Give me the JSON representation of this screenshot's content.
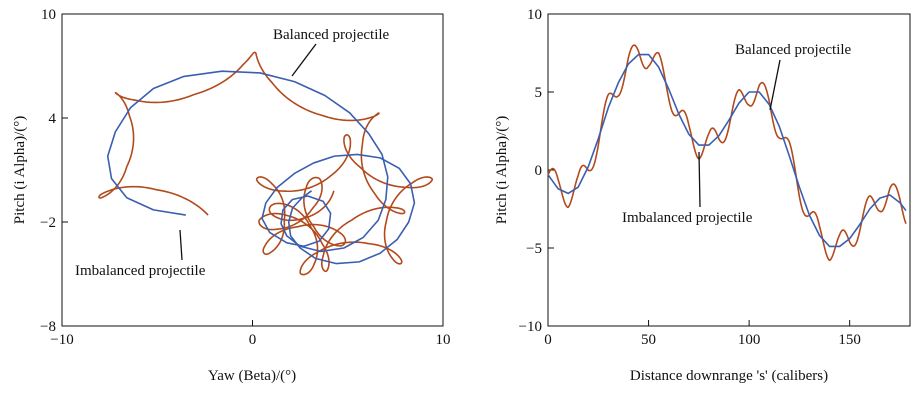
{
  "chart_data": [
    {
      "type": "line",
      "title": "",
      "xlabel": "Yaw (Beta)/(°)",
      "ylabel": "Pitch (i Alpha)/(°)",
      "xlim": [
        -10,
        10
      ],
      "ylim": [
        -8,
        10
      ],
      "xticks": [
        -10,
        0,
        10
      ],
      "yticks": [
        10,
        4,
        -2,
        -8
      ],
      "xtick_labels": [
        "−10",
        "0",
        "10"
      ],
      "ytick_labels": [
        "10",
        "4",
        "−2",
        "−8"
      ],
      "grid": false,
      "annotations": [
        {
          "text": "Balanced projectile",
          "target": "Balanced projectile"
        },
        {
          "text": "Imbalanced projectile",
          "target": "Imbalanced projectile"
        }
      ],
      "series": [
        {
          "name": "Balanced projectile",
          "color": "#3a5fb0",
          "x": [
            -3.5,
            -5.2,
            -6.6,
            -7.4,
            -7.6,
            -7.2,
            -6.4,
            -5.2,
            -3.6,
            -1.6,
            0.4,
            2.2,
            3.8,
            5.1,
            6.1,
            6.8,
            7.1,
            7.0,
            6.6,
            5.8,
            4.8,
            3.6,
            2.5,
            1.8,
            1.5,
            1.6,
            2.1,
            2.9,
            3.7,
            4.1,
            4.0,
            3.5,
            2.7,
            1.8,
            0.9,
            0.5,
            0.7,
            1.3,
            2.2,
            3.2,
            4.3,
            5.5,
            6.7,
            7.7,
            8.3,
            8.5,
            8.2,
            7.6,
            6.7,
            5.6,
            4.4,
            3.3,
            2.5,
            2.0,
            1.9,
            2.1,
            2.6,
            3.1
          ],
          "y": [
            -1.6,
            -1.3,
            -0.6,
            0.5,
            1.8,
            3.2,
            4.6,
            5.7,
            6.4,
            6.7,
            6.6,
            6.1,
            5.3,
            4.3,
            3.1,
            1.9,
            0.6,
            -0.7,
            -1.9,
            -2.9,
            -3.5,
            -3.7,
            -3.4,
            -2.8,
            -2.1,
            -1.3,
            -0.7,
            -0.5,
            -0.8,
            -1.5,
            -2.4,
            -3.1,
            -3.4,
            -3.2,
            -2.6,
            -1.8,
            -0.9,
            0.0,
            0.8,
            1.4,
            1.8,
            1.9,
            1.7,
            1.1,
            0.2,
            -0.9,
            -2.0,
            -3.0,
            -3.8,
            -4.3,
            -4.4,
            -4.1,
            -3.5,
            -2.8,
            -2.0,
            -1.2,
            -0.6,
            -0.2
          ]
        },
        {
          "name": "Imbalanced projectile",
          "color": "#b24a1d",
          "base_x": [
            -3.5,
            -5.2,
            -6.6,
            -7.4,
            -7.6,
            -7.2,
            -6.4,
            -5.2,
            -3.6,
            -1.6,
            0.4,
            2.2,
            3.8,
            5.1,
            6.1,
            6.8,
            7.1,
            7.0,
            6.6,
            5.8,
            4.8,
            3.6,
            2.5,
            1.8,
            1.5,
            1.6,
            2.1,
            2.9,
            3.7,
            4.1,
            4.0,
            3.5,
            2.7,
            1.8,
            0.9,
            0.5,
            0.7,
            1.3,
            2.2,
            3.2,
            4.3,
            5.5,
            6.7,
            7.7,
            8.3,
            8.5,
            8.2,
            7.6,
            6.7,
            5.6,
            4.4,
            3.3,
            2.5,
            2.0,
            1.9,
            2.1,
            2.6,
            3.1
          ],
          "base_y": [
            -1.6,
            -1.3,
            -0.6,
            0.5,
            1.8,
            3.2,
            4.6,
            5.7,
            6.4,
            6.7,
            6.6,
            6.1,
            5.3,
            4.3,
            3.1,
            1.9,
            0.6,
            -0.7,
            -1.9,
            -2.9,
            -3.5,
            -3.7,
            -3.4,
            -2.8,
            -2.1,
            -1.3,
            -0.7,
            -0.5,
            -0.8,
            -1.5,
            -2.4,
            -3.1,
            -3.4,
            -3.2,
            -2.6,
            -1.8,
            -0.9,
            0.0,
            0.8,
            1.4,
            1.8,
            1.9,
            1.7,
            1.1,
            0.2,
            -0.9,
            -2.0,
            -3.0,
            -3.8,
            -4.3,
            -4.4,
            -4.1,
            -3.5,
            -2.8,
            -2.0,
            -1.2,
            -0.6,
            -0.2
          ],
          "epicycle_radius": 1.3,
          "epicycle_cycles": 13
        }
      ]
    },
    {
      "type": "line",
      "title": "",
      "xlabel": "Distance downrange 's' (calibers)",
      "ylabel": "Pitch (i Alpha)/(°)",
      "xlim": [
        0,
        180
      ],
      "ylim": [
        -10,
        10
      ],
      "xticks": [
        0,
        50,
        100,
        150
      ],
      "yticks": [
        10,
        5,
        0,
        -5,
        -10
      ],
      "xtick_labels": [
        "0",
        "50",
        "100",
        "150"
      ],
      "ytick_labels": [
        "10",
        "5",
        "0",
        "−5",
        "−10"
      ],
      "grid": false,
      "annotations": [
        {
          "text": "Balanced projectile",
          "target": "Balanced projectile"
        },
        {
          "text": "Imbalanced projectile",
          "target": "Imbalanced projectile"
        }
      ],
      "series": [
        {
          "name": "Balanced projectile",
          "color": "#3a5fb0",
          "x": [
            0,
            5,
            10,
            15,
            20,
            25,
            30,
            35,
            40,
            45,
            50,
            55,
            60,
            65,
            70,
            75,
            80,
            85,
            90,
            95,
            100,
            105,
            110,
            115,
            120,
            125,
            130,
            135,
            140,
            145,
            150,
            155,
            160,
            165,
            170,
            175,
            178
          ],
          "y": [
            -0.3,
            -1.2,
            -1.5,
            -1.1,
            0.2,
            2.0,
            4.0,
            5.6,
            6.8,
            7.4,
            7.4,
            6.6,
            5.2,
            3.6,
            2.3,
            1.6,
            1.6,
            2.2,
            3.2,
            4.3,
            5.0,
            5.0,
            4.2,
            2.8,
            0.9,
            -1.1,
            -2.9,
            -4.2,
            -4.9,
            -4.9,
            -4.4,
            -3.5,
            -2.5,
            -1.8,
            -1.6,
            -2.1,
            -2.6
          ]
        },
        {
          "name": "Imbalanced projectile",
          "color": "#b24a1d",
          "base_x": [
            0,
            5,
            10,
            15,
            20,
            25,
            30,
            35,
            40,
            45,
            50,
            55,
            60,
            65,
            70,
            75,
            80,
            85,
            90,
            95,
            100,
            105,
            110,
            115,
            120,
            125,
            130,
            135,
            140,
            145,
            150,
            155,
            160,
            165,
            170,
            175,
            178
          ],
          "base_y": [
            -0.3,
            -1.2,
            -1.5,
            -1.1,
            0.2,
            2.0,
            4.0,
            5.6,
            6.8,
            7.4,
            7.4,
            6.6,
            5.2,
            3.6,
            2.3,
            1.6,
            1.6,
            2.2,
            3.2,
            4.3,
            5.0,
            5.0,
            4.2,
            2.8,
            0.9,
            -1.1,
            -2.9,
            -4.2,
            -4.9,
            -4.9,
            -4.4,
            -3.5,
            -2.5,
            -1.8,
            -1.6,
            -2.1,
            -2.6
          ],
          "oscillation_amplitude": 0.9,
          "oscillation_period": 13
        }
      ]
    }
  ]
}
